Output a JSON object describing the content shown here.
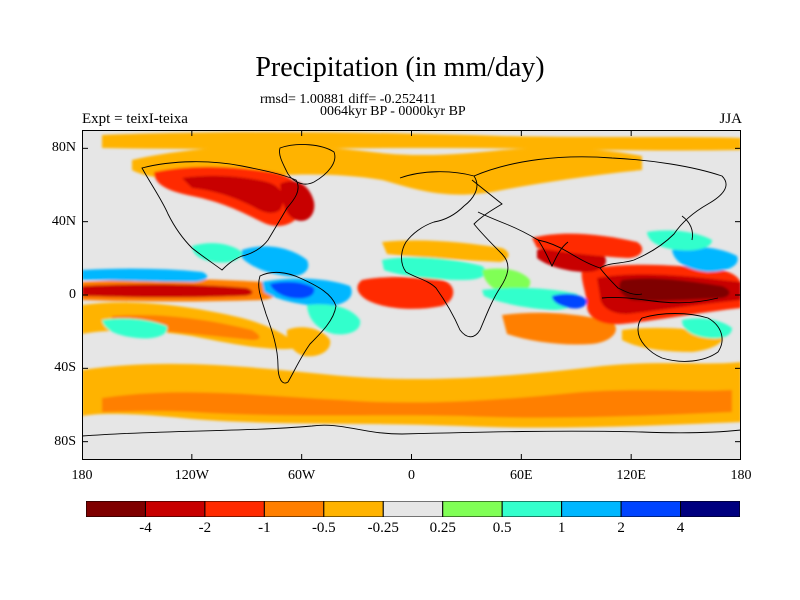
{
  "title": "Precipitation (in mm/day)",
  "stats_line": "rmsd= 1.00881 diff= -0.252411",
  "period_line": "0064kyr BP - 0000kyr BP",
  "experiment_label": "Expt = teixI-teixa",
  "season_label": "JJA",
  "map": {
    "projection": "cylindrical equidistant",
    "lon_range": [
      -180,
      180
    ],
    "lat_range": [
      -90,
      90
    ],
    "xticks": [
      {
        "lon": -180,
        "label": "180"
      },
      {
        "lon": -120,
        "label": "120W"
      },
      {
        "lon": -60,
        "label": "60W"
      },
      {
        "lon": 0,
        "label": "0"
      },
      {
        "lon": 60,
        "label": "60E"
      },
      {
        "lon": 120,
        "label": "120E"
      },
      {
        "lon": 180,
        "label": "180"
      }
    ],
    "yticks": [
      {
        "lat": 80,
        "label": "80N"
      },
      {
        "lat": 40,
        "label": "40N"
      },
      {
        "lat": 0,
        "label": "0"
      },
      {
        "lat": -40,
        "label": "40S"
      },
      {
        "lat": -80,
        "label": "80S"
      }
    ],
    "background_color": "#e6e6e6"
  },
  "colorbar": {
    "colors": [
      "#7f0000",
      "#c80000",
      "#ff2a00",
      "#ff7f00",
      "#ffb300",
      "#e6e6e6",
      "#80ff55",
      "#33ffcc",
      "#00b7ff",
      "#0044ff",
      "#00007f"
    ],
    "labels": [
      "-4",
      "-2",
      "-1",
      "-0.5",
      "-0.25",
      "0.25",
      "0.5",
      "1",
      "2",
      "4"
    ]
  }
}
